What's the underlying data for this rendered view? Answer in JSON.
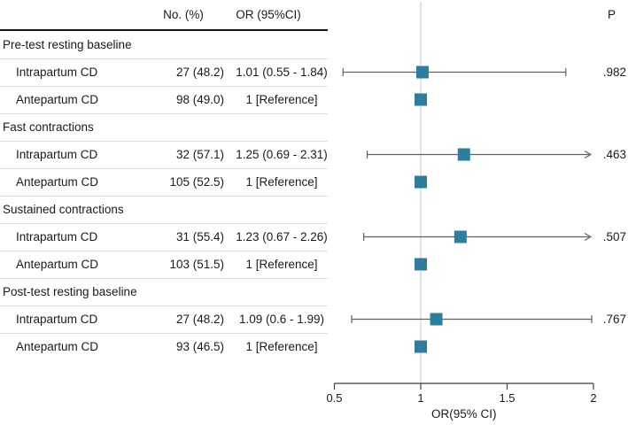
{
  "header": {
    "no_col": "No. (%)",
    "or_col": "OR (95%CI)",
    "p_col": "P"
  },
  "colors": {
    "marker": "#2e7d9c",
    "ci_line": "#5f5f5f",
    "ref_line": "#d9d9d9",
    "separator": "#dbdbdb",
    "header_rule": "#141414",
    "axis_line": "#3f3f3f",
    "text": "#1a1a1a"
  },
  "chart_data": {
    "type": "forest",
    "xlabel": "OR(95% CI)",
    "x_axis": {
      "min": 0.5,
      "max": 2,
      "ticks": [
        0.5,
        1,
        1.5,
        2
      ],
      "tick_labels": [
        "0.5",
        "1",
        "1.5",
        "2"
      ],
      "ref_line": 1
    },
    "groups": [
      {
        "label": "Pre-test resting baseline",
        "rows": [
          {
            "label": "Intrapartum CD",
            "n_pct": "27 (48.2)",
            "or_ci": "1.01 (0.55 - 1.84)",
            "or": 1.01,
            "ci_low": 0.55,
            "ci_high": 1.84,
            "p": ".982",
            "reference": false
          },
          {
            "label": "Antepartum CD",
            "n_pct": "98 (49.0)",
            "or_ci": "1 [Reference]",
            "or": 1,
            "reference": true
          }
        ]
      },
      {
        "label": "Fast contractions",
        "rows": [
          {
            "label": "Intrapartum CD",
            "n_pct": "32 (57.1)",
            "or_ci": "1.25 (0.69 - 2.31)",
            "or": 1.25,
            "ci_low": 0.69,
            "ci_high": 2.31,
            "p": ".463",
            "reference": false
          },
          {
            "label": "Antepartum CD",
            "n_pct": "105 (52.5)",
            "or_ci": "1 [Reference]",
            "or": 1,
            "reference": true
          }
        ]
      },
      {
        "label": "Sustained contractions",
        "rows": [
          {
            "label": "Intrapartum CD",
            "n_pct": "31 (55.4)",
            "or_ci": "1.23 (0.67 - 2.26)",
            "or": 1.23,
            "ci_low": 0.67,
            "ci_high": 2.26,
            "p": ".507",
            "reference": false
          },
          {
            "label": "Antepartum CD",
            "n_pct": "103 (51.5)",
            "or_ci": "1 [Reference]",
            "or": 1,
            "reference": true
          }
        ]
      },
      {
        "label": "Post-test resting baseline",
        "rows": [
          {
            "label": "Intrapartum CD",
            "n_pct": "27 (48.2)",
            "or_ci": "1.09 (0.6 - 1.99)",
            "or": 1.09,
            "ci_low": 0.6,
            "ci_high": 1.99,
            "p": ".767",
            "reference": false
          },
          {
            "label": "Antepartum CD",
            "n_pct": "93 (46.5)",
            "or_ci": "1 [Reference]",
            "or": 1,
            "reference": true
          }
        ]
      }
    ]
  }
}
